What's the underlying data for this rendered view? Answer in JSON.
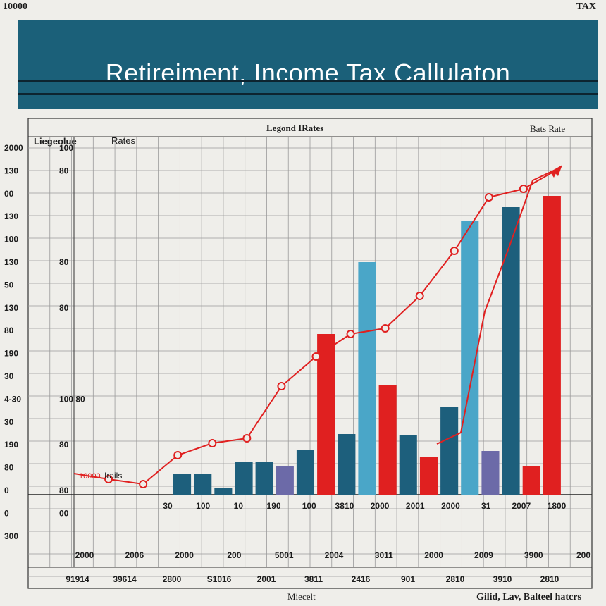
{
  "header": {
    "top_left": "10000",
    "top_right": "TAX",
    "title": "Retireiment, Income Tax Callulaton"
  },
  "colors": {
    "banner": "#1b6079",
    "red": "#e02020",
    "teal": "#1d5f7c",
    "light_blue": "#4aa6c8",
    "purple": "#6c6aa8"
  },
  "chart_data": {
    "type": "bar",
    "grid": true,
    "labels": {
      "legend_title": "Legond IRates",
      "top_right": "Bats Rate",
      "legend_left": "Liegeolue",
      "legend_rates": "Rates",
      "small_legend_red": "10000",
      "small_legend": "Irails",
      "bottom_center": "Miecelt",
      "bottom_right": "Gilid, Lav, Balteel hatcrs"
    },
    "y_axis_labels": [
      {
        "a": "2000",
        "b": "100"
      },
      {
        "a": "130",
        "b": "80"
      },
      {
        "a": "00",
        "b": ""
      },
      {
        "a": "130",
        "b": ""
      },
      {
        "a": "100",
        "b": ""
      },
      {
        "a": "130",
        "b": "80"
      },
      {
        "a": "50",
        "b": ""
      },
      {
        "a": "130",
        "b": "80"
      },
      {
        "a": "80",
        "b": ""
      },
      {
        "a": "190",
        "b": ""
      },
      {
        "a": "30",
        "b": ""
      },
      {
        "a": "4-30",
        "b": "100 80"
      },
      {
        "a": "30",
        "b": ""
      },
      {
        "a": "190",
        "b": "80"
      },
      {
        "a": "80",
        "b": ""
      },
      {
        "a": "0",
        "b": "80"
      },
      {
        "a": "0",
        "b": "00"
      },
      {
        "a": "300",
        "b": ""
      }
    ],
    "x_labels_row1": [
      "30",
      "100",
      "10",
      "190",
      "100",
      "3810",
      "2000",
      "2001",
      "2000",
      "31",
      "2007",
      "1800"
    ],
    "x_labels_row2": [
      "2000",
      "2006",
      "2000",
      "200",
      "5001",
      "2004",
      "3011",
      "2000",
      "2009",
      "3900",
      "200"
    ],
    "x_labels_row3": [
      "91914",
      "39614",
      "2800",
      "S1016",
      "2001",
      "3811",
      "2416",
      "901",
      "2810",
      "3910",
      "2810"
    ],
    "bars": [
      {
        "color": "teal",
        "value": 30
      },
      {
        "color": "teal",
        "value": 30
      },
      {
        "color": "teal",
        "value": 10
      },
      {
        "color": "teal",
        "value": 46
      },
      {
        "color": "teal",
        "value": 46
      },
      {
        "color": "purple",
        "value": 40
      },
      {
        "color": "teal",
        "value": 64
      },
      {
        "color": "red",
        "value": 228
      },
      {
        "color": "teal",
        "value": 86
      },
      {
        "color": "light_blue",
        "value": 330
      },
      {
        "color": "red",
        "value": 156
      },
      {
        "color": "teal",
        "value": 84
      },
      {
        "color": "red",
        "value": 54
      },
      {
        "color": "teal",
        "value": 124
      },
      {
        "color": "light_blue",
        "value": 388
      },
      {
        "color": "purple",
        "value": 62
      },
      {
        "color": "teal",
        "value": 408
      },
      {
        "color": "red",
        "value": 40
      },
      {
        "color": "red",
        "value": 424
      }
    ],
    "line1": [
      30,
      22,
      15,
      56,
      73,
      80,
      154,
      196,
      228,
      236,
      282,
      346,
      422,
      434,
      462
    ],
    "line2": [
      72,
      88,
      260,
      350,
      446,
      462
    ]
  }
}
